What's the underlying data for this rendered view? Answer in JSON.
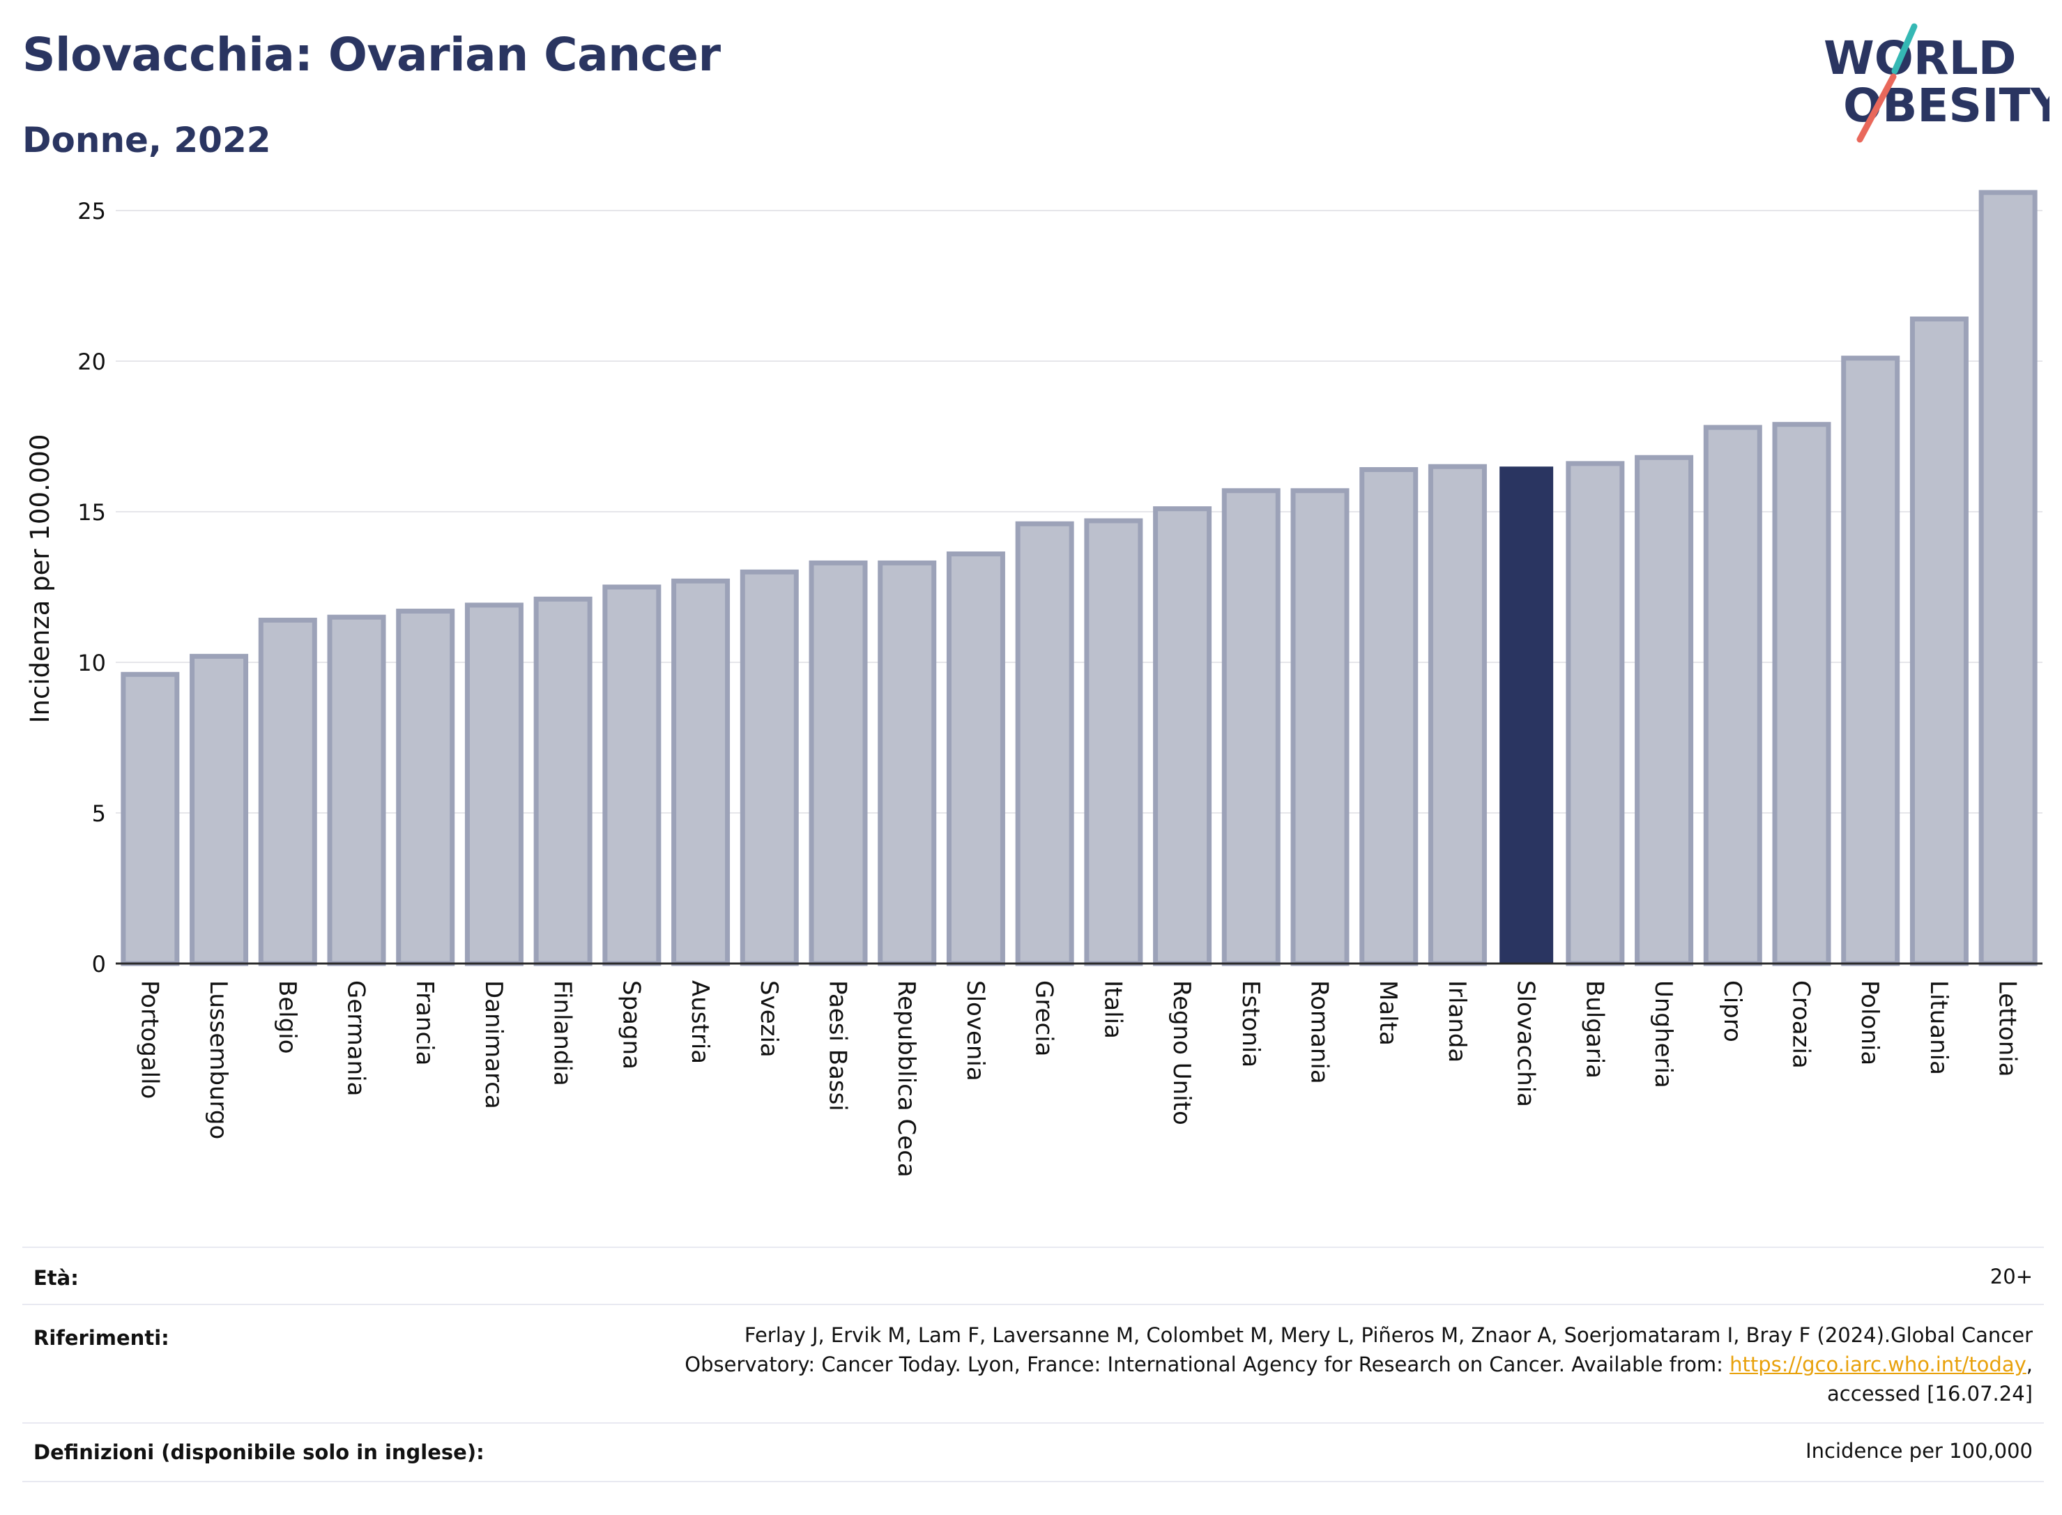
{
  "header": {
    "title": "Slovacchia: Ovarian Cancer",
    "subtitle": "Donne, 2022",
    "logo_line1": "WORLD",
    "logo_line2": "OBESITY"
  },
  "colors": {
    "title": "#2a3561",
    "bar": "#bcc0cd",
    "bar_border": "#9ca2b8",
    "highlight": "#2a3561",
    "grid": "#e6e6ea",
    "logo_teal": "#35b8b4",
    "logo_coral": "#e9685b"
  },
  "chart_data": {
    "type": "bar",
    "ylabel": "Incidenza per 100.000",
    "xlabel": "",
    "ylim": [
      0,
      26
    ],
    "yticks": [
      0,
      5,
      10,
      15,
      20,
      25
    ],
    "grid": true,
    "highlight": "Slovacchia",
    "categories": [
      "Portogallo",
      "Lussemburgo",
      "Belgio",
      "Germania",
      "Francia",
      "Danimarca",
      "Finlandia",
      "Spagna",
      "Austria",
      "Svezia",
      "Paesi Bassi",
      "Repubblica Ceca",
      "Slovenia",
      "Grecia",
      "Italia",
      "Regno Unito",
      "Estonia",
      "Romania",
      "Malta",
      "Irlanda",
      "Slovacchia",
      "Bulgaria",
      "Ungheria",
      "Cipro",
      "Croazia",
      "Polonia",
      "Lituania",
      "Lettonia"
    ],
    "values": [
      9.6,
      10.2,
      11.4,
      11.5,
      11.7,
      11.9,
      12.1,
      12.5,
      12.7,
      13.0,
      13.3,
      13.3,
      13.6,
      14.6,
      14.7,
      15.1,
      15.7,
      15.7,
      16.4,
      16.5,
      16.5,
      16.6,
      16.8,
      17.8,
      17.9,
      20.1,
      21.4,
      25.6
    ]
  },
  "footer": {
    "age_label": "Età:",
    "age_value": "20+",
    "refs_label": "Riferimenti:",
    "refs_line1": "Ferlay J, Ervik M, Lam F, Laversanne M, Colombet M, Mery L, Piñeros M, Znaor A, Soerjomataram I, Bray F (2024).Global Cancer",
    "refs_line2_pre": "Observatory: Cancer Today. Lyon, France: International Agency for Research on Cancer. Available from: ",
    "refs_link": "https://gco.iarc.who.int/today",
    "refs_line2_post": ",",
    "refs_line3": "accessed [16.07.24]",
    "def_label": "Definizioni (disponibile solo in inglese):",
    "def_value": "Incidence per 100,000"
  }
}
